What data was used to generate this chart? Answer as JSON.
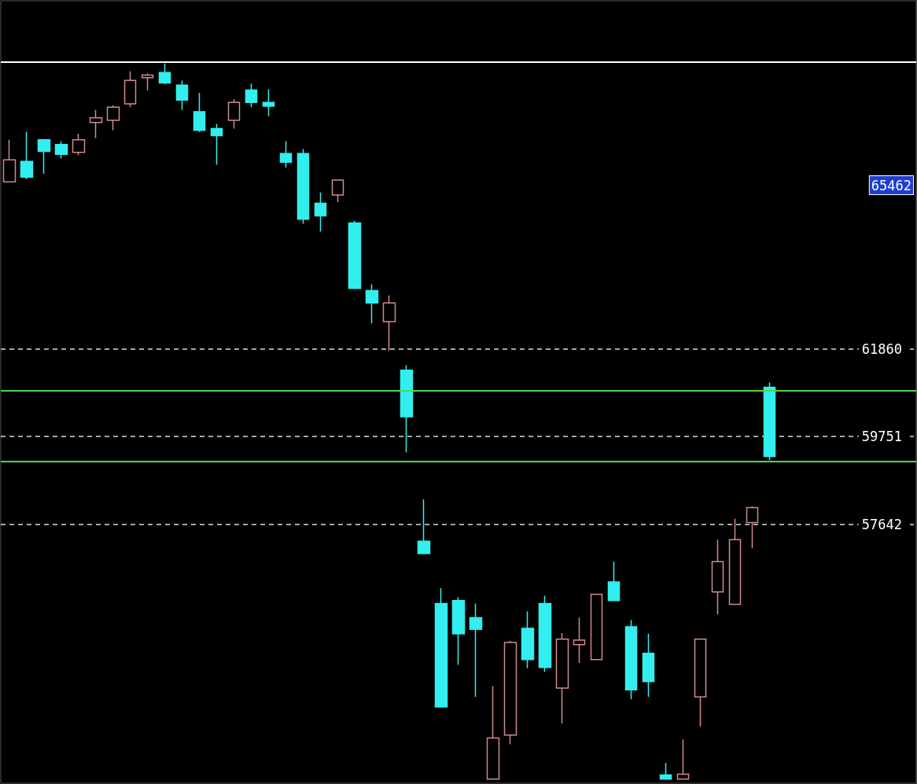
{
  "chart_data": {
    "type": "candlestick",
    "categories": [
      null,
      null,
      null,
      null,
      null,
      null,
      null,
      null,
      null,
      null,
      null,
      null,
      null,
      null,
      null,
      null,
      null,
      null,
      null,
      null,
      null,
      null,
      null,
      null,
      null,
      null,
      null,
      null,
      null,
      null,
      null,
      null,
      null,
      null,
      null,
      null,
      null,
      null,
      null,
      null,
      null,
      null,
      null,
      null,
      null,
      null,
      null,
      null,
      null,
      null,
      null,
      null,
      null
    ],
    "ohlc": [
      [
        65890,
        66900,
        65890,
        66420
      ],
      [
        66380,
        67090,
        65950,
        66000
      ],
      [
        66900,
        66900,
        66080,
        66620
      ],
      [
        66790,
        66870,
        66450,
        66550
      ],
      [
        66600,
        67050,
        66530,
        66900
      ],
      [
        67320,
        67620,
        66940,
        67430
      ],
      [
        67370,
        67730,
        67130,
        67690
      ],
      [
        67770,
        68550,
        67690,
        68330
      ],
      [
        68400,
        68500,
        68090,
        68460
      ],
      [
        68520,
        68740,
        68240,
        68270
      ],
      [
        68220,
        68330,
        67620,
        67860
      ],
      [
        67580,
        68030,
        67090,
        67130
      ],
      [
        67170,
        67280,
        66300,
        67000
      ],
      [
        67370,
        67880,
        67170,
        67800
      ],
      [
        68100,
        68250,
        67690,
        67800
      ],
      [
        67800,
        68120,
        67470,
        67710
      ],
      [
        66570,
        66870,
        66230,
        66360
      ],
      [
        66570,
        66680,
        64880,
        64990
      ],
      [
        65370,
        65630,
        64690,
        65070
      ],
      [
        65570,
        65930,
        65400,
        65930
      ],
      [
        64900,
        64950,
        63320,
        63320
      ],
      [
        63270,
        63420,
        62480,
        62970
      ],
      [
        62520,
        63150,
        61820,
        62970
      ],
      [
        61350,
        61470,
        59370,
        60230
      ],
      [
        57230,
        58240,
        56930,
        56930
      ],
      [
        55730,
        56100,
        53240,
        53240
      ],
      [
        55800,
        55880,
        54250,
        55000
      ],
      [
        55390,
        55730,
        53480,
        55110
      ],
      [
        51500,
        53740,
        51500,
        52490
      ],
      [
        52560,
        54830,
        52340,
        54790
      ],
      [
        55130,
        55540,
        54170,
        54380
      ],
      [
        55730,
        55920,
        54080,
        54190
      ],
      [
        53690,
        55020,
        52840,
        54870
      ],
      [
        54740,
        55390,
        54300,
        54850
      ],
      [
        54380,
        55970,
        54380,
        55950
      ],
      [
        56250,
        56740,
        55790,
        55800
      ],
      [
        55170,
        55330,
        53420,
        53650
      ],
      [
        54530,
        55000,
        53480,
        53850
      ],
      [
        51600,
        51890,
        51500,
        51500
      ],
      [
        51500,
        52450,
        51500,
        51620
      ],
      [
        53480,
        54870,
        52770,
        54870
      ],
      [
        56010,
        57270,
        55470,
        56740
      ],
      [
        55710,
        57770,
        55710,
        57270
      ],
      [
        57680,
        58070,
        57060,
        58040
      ],
      [
        60940,
        61050,
        59180,
        59270
      ],
      null,
      null,
      null,
      null,
      null,
      null,
      null,
      null
    ],
    "ylim": [
      51400,
      70250
    ],
    "yticks": [
      57642,
      59751,
      61860
    ],
    "grid": "y",
    "tick_labels": "y",
    "ref_lines": [
      {
        "axis": "y",
        "value": 68780,
        "color": "#ffffff"
      },
      {
        "axis": "y",
        "value": 60850,
        "color": "#4cd94c"
      },
      {
        "axis": "y",
        "value": 59160,
        "color": "#4cd94c"
      }
    ],
    "annotations": [
      "65462"
    ]
  }
}
